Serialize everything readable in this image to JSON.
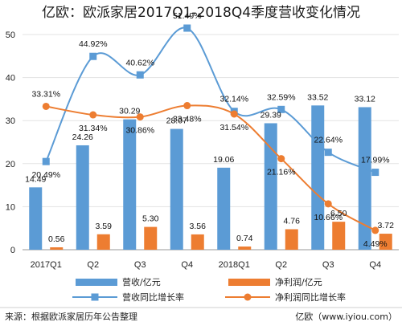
{
  "chart_data": {
    "type": "bar",
    "title": "亿欧：欧派家居2017Q1-2018Q4季度营收变化情况",
    "categories": [
      "2017Q1",
      "Q2",
      "Q3",
      "Q4",
      "2018Q1",
      "Q2",
      "Q3",
      "Q4"
    ],
    "ylim": [
      0,
      50
    ],
    "yticks": [
      0,
      10,
      20,
      30,
      40,
      50
    ],
    "grid": true,
    "legend_position": "bottom",
    "series": [
      {
        "name": "营收/亿元",
        "kind": "bar",
        "color": "#5b9bd5",
        "values": [
          14.49,
          24.26,
          30.29,
          28.07,
          19.06,
          29.39,
          33.52,
          33.12
        ],
        "labels": [
          "14.49",
          "24.26",
          "30.29",
          "28.07",
          "19.06",
          "29.39",
          "33.52",
          "33.12"
        ]
      },
      {
        "name": "净利润/亿元",
        "kind": "bar",
        "color": "#ed7d31",
        "values": [
          0.56,
          3.59,
          5.3,
          3.56,
          0.74,
          4.76,
          6.5,
          3.72
        ],
        "labels": [
          "0.56",
          "3.59",
          "5.30",
          "3.56",
          "0.74",
          "4.76",
          "6.50",
          "3.72"
        ]
      },
      {
        "name": "营收同比增长率",
        "kind": "line",
        "color": "#5b9bd5",
        "values": [
          20.49,
          44.92,
          40.62,
          51.49,
          32.14,
          32.59,
          22.64,
          17.99
        ],
        "labels": [
          "20.49%",
          "44.92%",
          "40.62%",
          "51.49%",
          "32.14%",
          "32.59%",
          "22.64%",
          "17.99%"
        ]
      },
      {
        "name": "净利润同比增长率",
        "kind": "line",
        "color": "#ed7d31",
        "values": [
          33.31,
          31.34,
          30.86,
          33.48,
          31.54,
          21.16,
          10.66,
          4.49
        ],
        "labels": [
          "33.31%",
          "31.34%",
          "30.86%",
          "33.48%",
          "31.54%",
          "21.16%",
          "10.66%",
          "4.49%"
        ]
      }
    ]
  },
  "footer": {
    "source": "来源：根据欧派家居历年公告整理",
    "brand": "亿欧（www.iyiou.com）"
  }
}
